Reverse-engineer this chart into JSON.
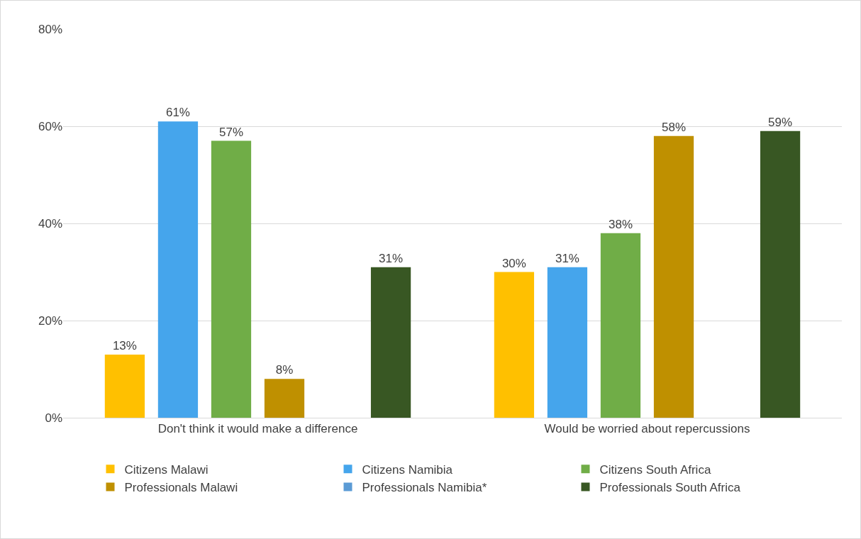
{
  "chart_data": {
    "type": "bar",
    "categories": [
      "Don't think it would make a difference",
      "Would be worried about repercussions"
    ],
    "series": [
      {
        "name": "Citizens Malawi",
        "color": "#ffc000",
        "values": [
          13,
          30
        ],
        "value_labels": [
          "13%",
          "30%"
        ]
      },
      {
        "name": "Citizens Namibia",
        "color": "#45a5ec",
        "values": [
          61,
          31
        ],
        "value_labels": [
          "61%",
          "31%"
        ]
      },
      {
        "name": "Citizens South Africa",
        "color": "#70ad47",
        "values": [
          57,
          38
        ],
        "value_labels": [
          "57%",
          "38%"
        ]
      },
      {
        "name": "Professionals Malawi",
        "color": "#bf9000",
        "values": [
          8,
          58
        ],
        "value_labels": [
          "8%",
          "58%"
        ]
      },
      {
        "name": "Professionals Namibia*",
        "color": "#5b9bd5",
        "values": [
          null,
          null
        ],
        "value_labels": [
          null,
          null
        ]
      },
      {
        "name": "Professionals South Africa",
        "color": "#385723",
        "values": [
          31,
          59
        ],
        "value_labels": [
          "31%",
          "59%"
        ]
      }
    ],
    "ylim": [
      0,
      80
    ],
    "yticks": [
      {
        "value": 0,
        "label": "0%"
      },
      {
        "value": 20,
        "label": "20%"
      },
      {
        "value": 40,
        "label": "40%"
      },
      {
        "value": 60,
        "label": "60%"
      },
      {
        "value": 80,
        "label": "80%"
      }
    ],
    "grid": "y",
    "legend": "bottom"
  }
}
